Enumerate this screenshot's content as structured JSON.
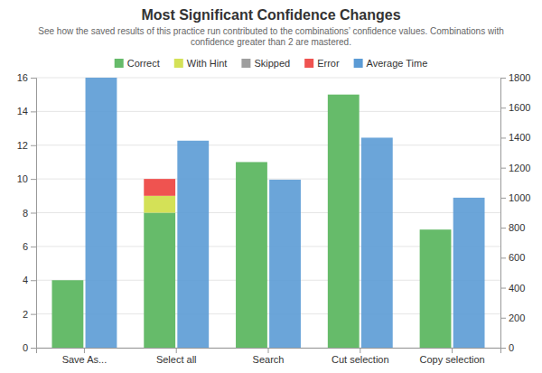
{
  "chart_data": {
    "type": "bar",
    "title": "Most Significant Confidence Changes",
    "subtitle": "See how the saved results of this practice run contributed to the combinations’ confidence values. Combinations with confidence greater than 2 are mastered.",
    "categories": [
      "Save As...",
      "Select all",
      "Search",
      "Cut selection",
      "Copy selection"
    ],
    "series": [
      {
        "name": "Correct",
        "color": "#66bb6a",
        "values": [
          4,
          8,
          11,
          15,
          7
        ]
      },
      {
        "name": "With Hint",
        "color": "#d4e157",
        "values": [
          0,
          1,
          0,
          0,
          0
        ]
      },
      {
        "name": "Skipped",
        "color": "#9e9e9e",
        "values": [
          0,
          0,
          0,
          0,
          0
        ]
      },
      {
        "name": "Error",
        "color": "#ef5350",
        "values": [
          0,
          1,
          0,
          0,
          0
        ]
      },
      {
        "name": "Average Time",
        "color": "#5b9bd5",
        "values": [
          1800,
          1380,
          1120,
          1400,
          1000
        ],
        "axis": "y2"
      }
    ],
    "stacked": true,
    "ylim": [
      0,
      16
    ],
    "yticks": [
      0,
      2,
      4,
      6,
      8,
      10,
      12,
      14,
      16
    ],
    "y2lim": [
      0,
      1800
    ],
    "y2ticks": [
      0,
      200,
      400,
      600,
      800,
      1000,
      1200,
      1400,
      1600,
      1800
    ],
    "grid": true,
    "legend": "top"
  }
}
